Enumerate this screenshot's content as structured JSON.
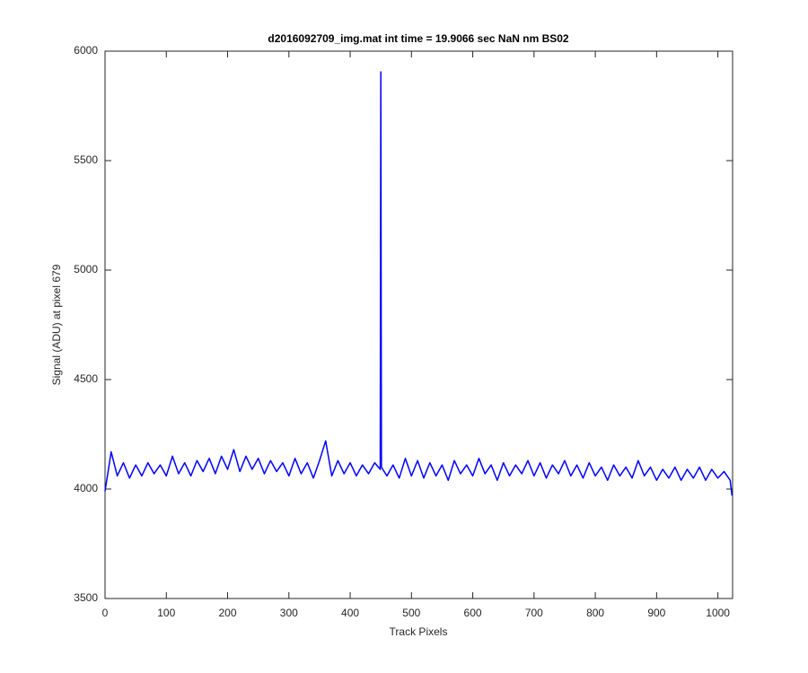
{
  "chart_data": {
    "type": "line",
    "title": "d2016092709_img.mat int time = 19.9066 sec  NaN nm BS02",
    "xlabel": "Track Pixels",
    "ylabel": "Signal (ADU) at pixel 679",
    "xlim": [
      0,
      1024
    ],
    "ylim": [
      3500,
      6000
    ],
    "xticks": [
      0,
      100,
      200,
      300,
      400,
      500,
      600,
      700,
      800,
      900,
      1000
    ],
    "yticks": [
      3500,
      4000,
      4500,
      5000,
      5500,
      6000
    ],
    "grid": false,
    "series": [
      {
        "color": "#0000ff",
        "x": [
          0,
          10,
          20,
          30,
          40,
          50,
          60,
          70,
          80,
          90,
          100,
          110,
          120,
          130,
          140,
          150,
          160,
          170,
          180,
          190,
          200,
          210,
          220,
          230,
          240,
          250,
          260,
          270,
          280,
          290,
          300,
          310,
          320,
          330,
          340,
          350,
          360,
          370,
          380,
          390,
          400,
          410,
          420,
          430,
          440,
          449,
          450,
          451,
          460,
          470,
          480,
          490,
          500,
          510,
          520,
          530,
          540,
          550,
          560,
          570,
          580,
          590,
          600,
          610,
          620,
          630,
          640,
          650,
          660,
          670,
          680,
          690,
          700,
          710,
          720,
          730,
          740,
          750,
          760,
          770,
          780,
          790,
          800,
          810,
          820,
          830,
          840,
          850,
          860,
          870,
          880,
          890,
          900,
          910,
          920,
          930,
          940,
          950,
          960,
          970,
          980,
          990,
          1000,
          1010,
          1020,
          1023
        ],
        "values": [
          3990,
          4170,
          4060,
          4120,
          4050,
          4110,
          4060,
          4120,
          4070,
          4110,
          4060,
          4150,
          4070,
          4120,
          4060,
          4130,
          4080,
          4140,
          4070,
          4150,
          4090,
          4180,
          4080,
          4150,
          4090,
          4140,
          4070,
          4130,
          4080,
          4120,
          4060,
          4140,
          4070,
          4120,
          4050,
          4130,
          4220,
          4060,
          4130,
          4070,
          4120,
          4060,
          4110,
          4070,
          4120,
          4090,
          5905,
          4100,
          4060,
          4110,
          4050,
          4140,
          4060,
          4130,
          4050,
          4120,
          4060,
          4110,
          4040,
          4130,
          4070,
          4110,
          4060,
          4140,
          4070,
          4110,
          4040,
          4120,
          4060,
          4110,
          4070,
          4130,
          4060,
          4120,
          4050,
          4110,
          4070,
          4130,
          4060,
          4110,
          4050,
          4120,
          4060,
          4100,
          4040,
          4110,
          4060,
          4100,
          4050,
          4130,
          4060,
          4100,
          4040,
          4090,
          4050,
          4100,
          4040,
          4090,
          4050,
          4100,
          4040,
          4090,
          4050,
          4080,
          4040,
          3970
        ]
      }
    ]
  }
}
